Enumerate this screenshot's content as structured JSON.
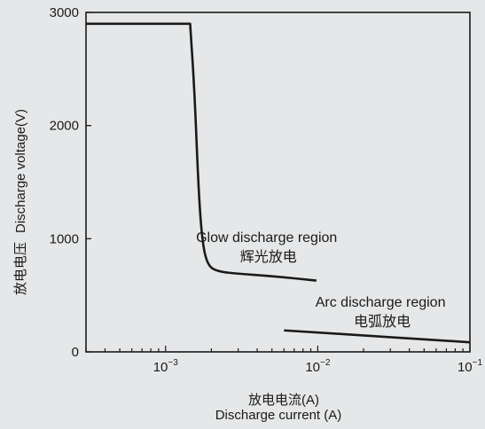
{
  "chart_data": {
    "type": "line",
    "xscale": "log",
    "xlim": [
      0.0003,
      0.1
    ],
    "ylim": [
      0,
      3000
    ],
    "ylabel_cn": "放电电压",
    "ylabel_en": "Discharge voltage(V)",
    "xlabel_cn": "放电电流(A)",
    "xlabel_en": "Discharge current (A)",
    "y_ticks": [
      0,
      1000,
      2000,
      3000
    ],
    "x_ticks": [
      {
        "value": 0.001,
        "base": "10",
        "exp": "−3"
      },
      {
        "value": 0.01,
        "base": "10",
        "exp": "−2"
      },
      {
        "value": 0.1,
        "base": "10",
        "exp": "−1"
      }
    ],
    "series": [
      {
        "region": "glow",
        "x": [
          0.0003,
          0.00145,
          0.00155,
          0.00165,
          0.00175,
          0.0019,
          0.0022,
          0.003,
          0.005,
          0.0098
        ],
        "y": [
          2900,
          2900,
          2300,
          1400,
          950,
          760,
          710,
          690,
          670,
          630
        ]
      },
      {
        "region": "arc",
        "x": [
          0.006,
          0.0135,
          0.03,
          0.1
        ],
        "y": [
          190,
          160,
          130,
          85
        ]
      }
    ],
    "annotations": [
      {
        "id": "glow",
        "en": "Glow discharge region",
        "cn": "辉光放电",
        "x": 0.005,
        "y": 970
      },
      {
        "id": "arc",
        "en": "Arc discharge region",
        "cn": "电弧放电",
        "x": 0.028,
        "y": 400
      }
    ]
  }
}
